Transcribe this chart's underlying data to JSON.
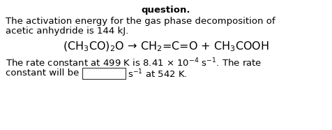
{
  "title": "question.",
  "line1": "The activation energy for the gas phase decomposition of",
  "line2": "acetic anhydride is 144 kJ.",
  "equation": "(CH$_3$CO)$_2$O → CH$_2$=C=O + CH$_3$COOH",
  "line3": "The rate constant at 499 K is 8.41 $\\times$ 10$^{-4}$ s$^{-1}$. The rate",
  "line4_pre": "constant will be",
  "line4_post": "s$^{-1}$ at 542 K.",
  "bg_color": "#ffffff",
  "text_color": "#000000",
  "font_size": 9.5,
  "eq_font_size": 11.5,
  "title_font_size": 9.5
}
